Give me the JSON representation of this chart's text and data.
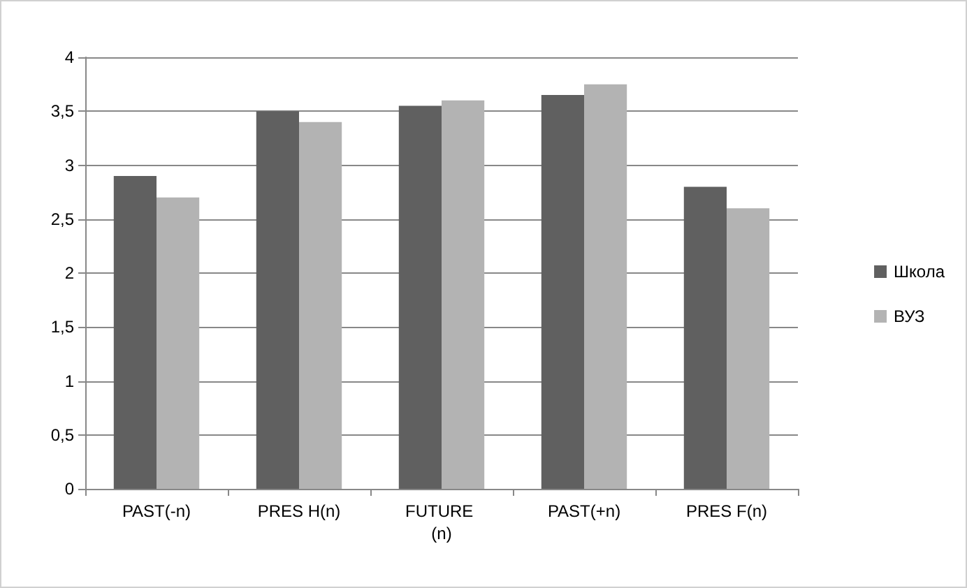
{
  "chart_data": {
    "type": "bar",
    "categories": [
      "PAST(-n)",
      "PRES H(n)",
      "FUTURE (n)",
      "PAST(+n)",
      "PRES F(n)"
    ],
    "series": [
      {
        "name": "Школа",
        "color": "#606060",
        "values": [
          2.9,
          3.5,
          3.55,
          3.65,
          2.8
        ]
      },
      {
        "name": "ВУЗ",
        "color": "#b3b3b3",
        "values": [
          2.7,
          3.4,
          3.6,
          3.75,
          2.6
        ]
      }
    ],
    "ylim": [
      0,
      4
    ],
    "yticks": [
      0,
      {
        "value": 0.5,
        "label": "0,5"
      },
      1,
      {
        "value": 1.5,
        "label": "1,5"
      },
      2,
      {
        "value": 2.5,
        "label": "2,5"
      },
      3,
      {
        "value": 3.5,
        "label": "3,5"
      },
      4
    ],
    "grid": "y",
    "legend": "right"
  }
}
